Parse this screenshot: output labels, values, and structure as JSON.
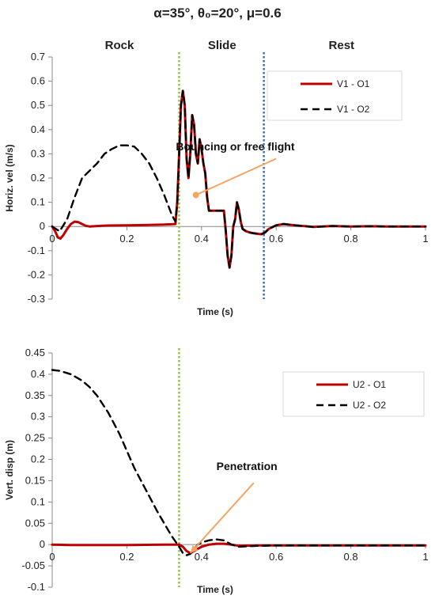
{
  "figure_title": "α=35°, θ₀=20°, μ=0.6",
  "chart_data": [
    {
      "type": "line",
      "title": "",
      "xlabel": "Time (s)",
      "ylabel": "Horiz. vel (m/s)",
      "xlim": [
        0,
        1
      ],
      "ylim": [
        -0.3,
        0.7
      ],
      "xticks": [
        0,
        0.2,
        0.4,
        0.6,
        0.8,
        1
      ],
      "xtick_labels": [
        "0",
        "0.2",
        "0.4",
        "0.6",
        "0.8",
        "1"
      ],
      "yticks": [
        -0.3,
        -0.2,
        -0.1,
        0,
        0.1,
        0.2,
        0.3,
        0.4,
        0.5,
        0.6,
        0.7
      ],
      "ytick_labels": [
        "-0.3",
        "-0.2",
        "-0.1",
        "0",
        "0.1",
        "0.2",
        "0.3",
        "0.4",
        "0.5",
        "0.6",
        "0.7"
      ],
      "grid": false,
      "legend_position": "top-right",
      "phases": [
        {
          "label": "Rock",
          "x": 0.18
        },
        {
          "label": "Slide",
          "x": 0.455
        },
        {
          "label": "Rest",
          "x": 0.775
        }
      ],
      "vlines": [
        {
          "x": 0.34,
          "color": "#8cc63f"
        },
        {
          "x": 0.567,
          "color": "#3a6fb5"
        }
      ],
      "annotations": [
        {
          "text": "Bouncing or free flight",
          "point": [
            0.385,
            0.13
          ],
          "text_anchor_point": [
            0.6,
            0.28
          ]
        }
      ],
      "series": [
        {
          "name": "V1 - O1",
          "color": "#c00000",
          "style": "solid",
          "x": [
            0,
            0.008,
            0.015,
            0.022,
            0.03,
            0.04,
            0.05,
            0.06,
            0.07,
            0.08,
            0.09,
            0.1,
            0.12,
            0.15,
            0.2,
            0.25,
            0.3,
            0.33,
            0.335,
            0.34,
            0.345,
            0.35,
            0.355,
            0.36,
            0.365,
            0.37,
            0.375,
            0.38,
            0.385,
            0.39,
            0.395,
            0.4,
            0.405,
            0.41,
            0.415,
            0.42,
            0.44,
            0.46,
            0.465,
            0.47,
            0.475,
            0.48,
            0.485,
            0.49,
            0.495,
            0.5,
            0.505,
            0.51,
            0.52,
            0.53,
            0.54,
            0.55,
            0.56,
            0.57,
            0.58,
            0.6,
            0.62,
            0.65,
            0.7,
            0.75,
            0.8,
            0.85,
            0.9,
            0.95,
            1.0
          ],
          "y": [
            0,
            -0.02,
            -0.045,
            -0.05,
            -0.035,
            -0.01,
            0.01,
            0.02,
            0.018,
            0.01,
            0.003,
            0,
            0.002,
            0.004,
            0.005,
            0.006,
            0.008,
            0.01,
            0.1,
            0.3,
            0.5,
            0.56,
            0.5,
            0.28,
            0.2,
            0.3,
            0.46,
            0.42,
            0.3,
            0.26,
            0.36,
            0.32,
            0.26,
            0.22,
            0.12,
            0.065,
            0.065,
            0.065,
            -0.02,
            -0.12,
            -0.17,
            -0.12,
            0.0,
            0.03,
            0.1,
            0.07,
            0.02,
            -0.01,
            -0.02,
            -0.025,
            -0.028,
            -0.03,
            -0.032,
            -0.025,
            -0.01,
            0.005,
            0.01,
            0.005,
            -0.002,
            0.002,
            0.0,
            0.001,
            0.0,
            0.0,
            0.0
          ]
        },
        {
          "name": "V1 - O2",
          "color": "#000000",
          "style": "dashed",
          "x": [
            0,
            0.02,
            0.04,
            0.06,
            0.08,
            0.1,
            0.12,
            0.14,
            0.16,
            0.18,
            0.2,
            0.22,
            0.24,
            0.26,
            0.28,
            0.3,
            0.31,
            0.32,
            0.33,
            0.335,
            0.34,
            0.345,
            0.35,
            0.355,
            0.36,
            0.365,
            0.37,
            0.375,
            0.38,
            0.385,
            0.39,
            0.395,
            0.4,
            0.405,
            0.41,
            0.415,
            0.42,
            0.44,
            0.46,
            0.465,
            0.47,
            0.475,
            0.48,
            0.485,
            0.49,
            0.495,
            0.5,
            0.505,
            0.51,
            0.52,
            0.53,
            0.54,
            0.55,
            0.56,
            0.57,
            0.58,
            0.6,
            0.62,
            0.65,
            0.7,
            0.75,
            0.8,
            0.85,
            0.9,
            0.95,
            1.0
          ],
          "y": [
            0,
            -0.02,
            0.03,
            0.12,
            0.2,
            0.23,
            0.26,
            0.3,
            0.32,
            0.335,
            0.335,
            0.33,
            0.3,
            0.26,
            0.2,
            0.13,
            0.09,
            0.05,
            0.02,
            0.1,
            0.3,
            0.5,
            0.56,
            0.5,
            0.28,
            0.2,
            0.3,
            0.46,
            0.42,
            0.3,
            0.26,
            0.36,
            0.32,
            0.26,
            0.22,
            0.12,
            0.065,
            0.065,
            0.065,
            -0.02,
            -0.12,
            -0.17,
            -0.12,
            0.0,
            0.03,
            0.1,
            0.07,
            0.02,
            -0.01,
            -0.02,
            -0.025,
            -0.028,
            -0.03,
            -0.032,
            -0.025,
            -0.01,
            0.005,
            0.01,
            0.005,
            -0.002,
            0.002,
            0.0,
            0.001,
            0.0,
            0.0,
            0.0
          ]
        }
      ]
    },
    {
      "type": "line",
      "title": "",
      "xlabel": "Time (s)",
      "ylabel": "Vert. disp (m)",
      "xlim": [
        0,
        1
      ],
      "ylim": [
        -0.1,
        0.45
      ],
      "xticks": [
        0,
        0.2,
        0.4,
        0.6,
        0.8,
        1
      ],
      "xtick_labels": [
        "0",
        "0.2",
        "0.4",
        "0.6",
        "0.8",
        "1"
      ],
      "yticks": [
        -0.1,
        -0.05,
        0,
        0.05,
        0.1,
        0.15,
        0.2,
        0.25,
        0.3,
        0.35,
        0.4,
        0.45
      ],
      "ytick_labels": [
        "-0.1",
        "-0.05",
        "0",
        "0.05",
        "0.1",
        "0.15",
        "0.2",
        "0.25",
        "0.3",
        "0.35",
        "0.4",
        "0.45"
      ],
      "grid": false,
      "legend_position": "top-right",
      "vlines": [
        {
          "x": 0.34,
          "color": "#8cc63f"
        }
      ],
      "annotations": [
        {
          "text": "Penetration",
          "point": [
            0.37,
            -0.02
          ],
          "text_anchor_point": [
            0.54,
            0.145
          ]
        }
      ],
      "series": [
        {
          "name": "U2 - O1",
          "color": "#c00000",
          "style": "solid",
          "x": [
            0,
            0.05,
            0.1,
            0.2,
            0.3,
            0.33,
            0.34,
            0.35,
            0.36,
            0.37,
            0.38,
            0.4,
            0.42,
            0.44,
            0.46,
            0.48,
            0.5,
            0.55,
            0.6,
            0.7,
            0.8,
            0.9,
            1.0
          ],
          "y": [
            0,
            -0.001,
            -0.001,
            -0.001,
            0,
            0,
            0,
            -0.005,
            -0.015,
            -0.02,
            -0.015,
            -0.005,
            0,
            0.002,
            0.002,
            0,
            -0.003,
            -0.002,
            -0.002,
            -0.002,
            -0.002,
            -0.002,
            -0.002
          ]
        },
        {
          "name": "U2 - O2",
          "color": "#000000",
          "style": "dashed",
          "x": [
            0,
            0.02,
            0.05,
            0.08,
            0.1,
            0.12,
            0.15,
            0.18,
            0.2,
            0.22,
            0.25,
            0.28,
            0.3,
            0.32,
            0.34,
            0.35,
            0.36,
            0.37,
            0.38,
            0.39,
            0.4,
            0.42,
            0.44,
            0.46,
            0.48,
            0.5,
            0.55,
            0.6,
            0.7,
            0.8,
            0.9,
            1.0
          ],
          "y": [
            0.41,
            0.408,
            0.4,
            0.385,
            0.37,
            0.35,
            0.31,
            0.26,
            0.22,
            0.18,
            0.13,
            0.08,
            0.05,
            0.02,
            -0.005,
            -0.02,
            -0.025,
            -0.022,
            -0.01,
            0.0,
            0.005,
            0.01,
            0.012,
            0.01,
            0.0,
            -0.005,
            -0.003,
            -0.002,
            -0.002,
            -0.002,
            -0.002,
            -0.002
          ]
        }
      ]
    }
  ]
}
